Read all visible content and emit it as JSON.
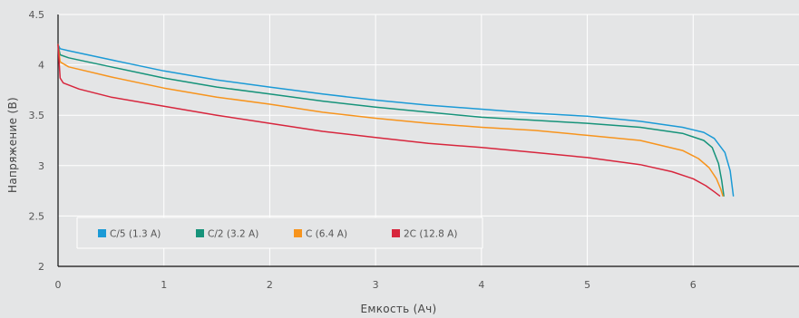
{
  "chart_data": {
    "type": "line",
    "title": "",
    "xlabel": "Емкость (Ач)",
    "ylabel": "Напряжение (В)",
    "xlim": [
      0,
      7
    ],
    "ylim": [
      2,
      4.5
    ],
    "xticks": [
      "0",
      "1",
      "2",
      "3",
      "4",
      "5",
      "6"
    ],
    "yticks": [
      "2",
      "2.5",
      "3",
      "3.5",
      "4",
      "4.5"
    ],
    "grid": true,
    "legend_position": "bottom-left",
    "series": [
      {
        "name": "C/5 (1.3 A)",
        "color": "#1b9ad6",
        "points": [
          [
            0,
            4.2
          ],
          [
            0.02,
            4.16
          ],
          [
            0.1,
            4.14
          ],
          [
            0.5,
            4.05
          ],
          [
            1,
            3.94
          ],
          [
            1.5,
            3.85
          ],
          [
            2,
            3.78
          ],
          [
            2.5,
            3.71
          ],
          [
            3,
            3.65
          ],
          [
            3.5,
            3.6
          ],
          [
            4,
            3.56
          ],
          [
            4.5,
            3.52
          ],
          [
            5,
            3.49
          ],
          [
            5.5,
            3.44
          ],
          [
            5.9,
            3.38
          ],
          [
            6.1,
            3.33
          ],
          [
            6.2,
            3.27
          ],
          [
            6.3,
            3.13
          ],
          [
            6.35,
            2.95
          ],
          [
            6.38,
            2.7
          ]
        ]
      },
      {
        "name": "C/2 (3.2 A)",
        "color": "#16937a",
        "points": [
          [
            0,
            4.2
          ],
          [
            0.02,
            4.1
          ],
          [
            0.1,
            4.07
          ],
          [
            0.5,
            3.98
          ],
          [
            1,
            3.87
          ],
          [
            1.5,
            3.78
          ],
          [
            2,
            3.71
          ],
          [
            2.5,
            3.64
          ],
          [
            3,
            3.58
          ],
          [
            3.5,
            3.53
          ],
          [
            4,
            3.48
          ],
          [
            4.5,
            3.45
          ],
          [
            5,
            3.42
          ],
          [
            5.5,
            3.38
          ],
          [
            5.9,
            3.32
          ],
          [
            6.1,
            3.25
          ],
          [
            6.18,
            3.18
          ],
          [
            6.24,
            3.02
          ],
          [
            6.27,
            2.85
          ],
          [
            6.29,
            2.7
          ]
        ]
      },
      {
        "name": "C (6.4 A)",
        "color": "#f7941d",
        "points": [
          [
            0,
            4.2
          ],
          [
            0.02,
            4.03
          ],
          [
            0.1,
            3.98
          ],
          [
            0.5,
            3.88
          ],
          [
            1,
            3.77
          ],
          [
            1.5,
            3.68
          ],
          [
            2,
            3.61
          ],
          [
            2.5,
            3.53
          ],
          [
            3,
            3.47
          ],
          [
            3.5,
            3.42
          ],
          [
            4,
            3.38
          ],
          [
            4.5,
            3.35
          ],
          [
            5,
            3.3
          ],
          [
            5.5,
            3.25
          ],
          [
            5.9,
            3.15
          ],
          [
            6.05,
            3.07
          ],
          [
            6.15,
            2.98
          ],
          [
            6.22,
            2.87
          ],
          [
            6.26,
            2.77
          ],
          [
            6.28,
            2.7
          ]
        ]
      },
      {
        "name": "2C (12.8 A)",
        "color": "#d7263d",
        "points": [
          [
            0,
            4.2
          ],
          [
            0.02,
            3.87
          ],
          [
            0.05,
            3.82
          ],
          [
            0.2,
            3.76
          ],
          [
            0.5,
            3.68
          ],
          [
            1,
            3.59
          ],
          [
            1.5,
            3.5
          ],
          [
            2,
            3.42
          ],
          [
            2.5,
            3.34
          ],
          [
            3,
            3.28
          ],
          [
            3.5,
            3.22
          ],
          [
            4,
            3.18
          ],
          [
            4.5,
            3.13
          ],
          [
            5,
            3.08
          ],
          [
            5.5,
            3.01
          ],
          [
            5.8,
            2.94
          ],
          [
            6,
            2.87
          ],
          [
            6.12,
            2.8
          ],
          [
            6.2,
            2.74
          ],
          [
            6.25,
            2.7
          ]
        ]
      }
    ]
  }
}
